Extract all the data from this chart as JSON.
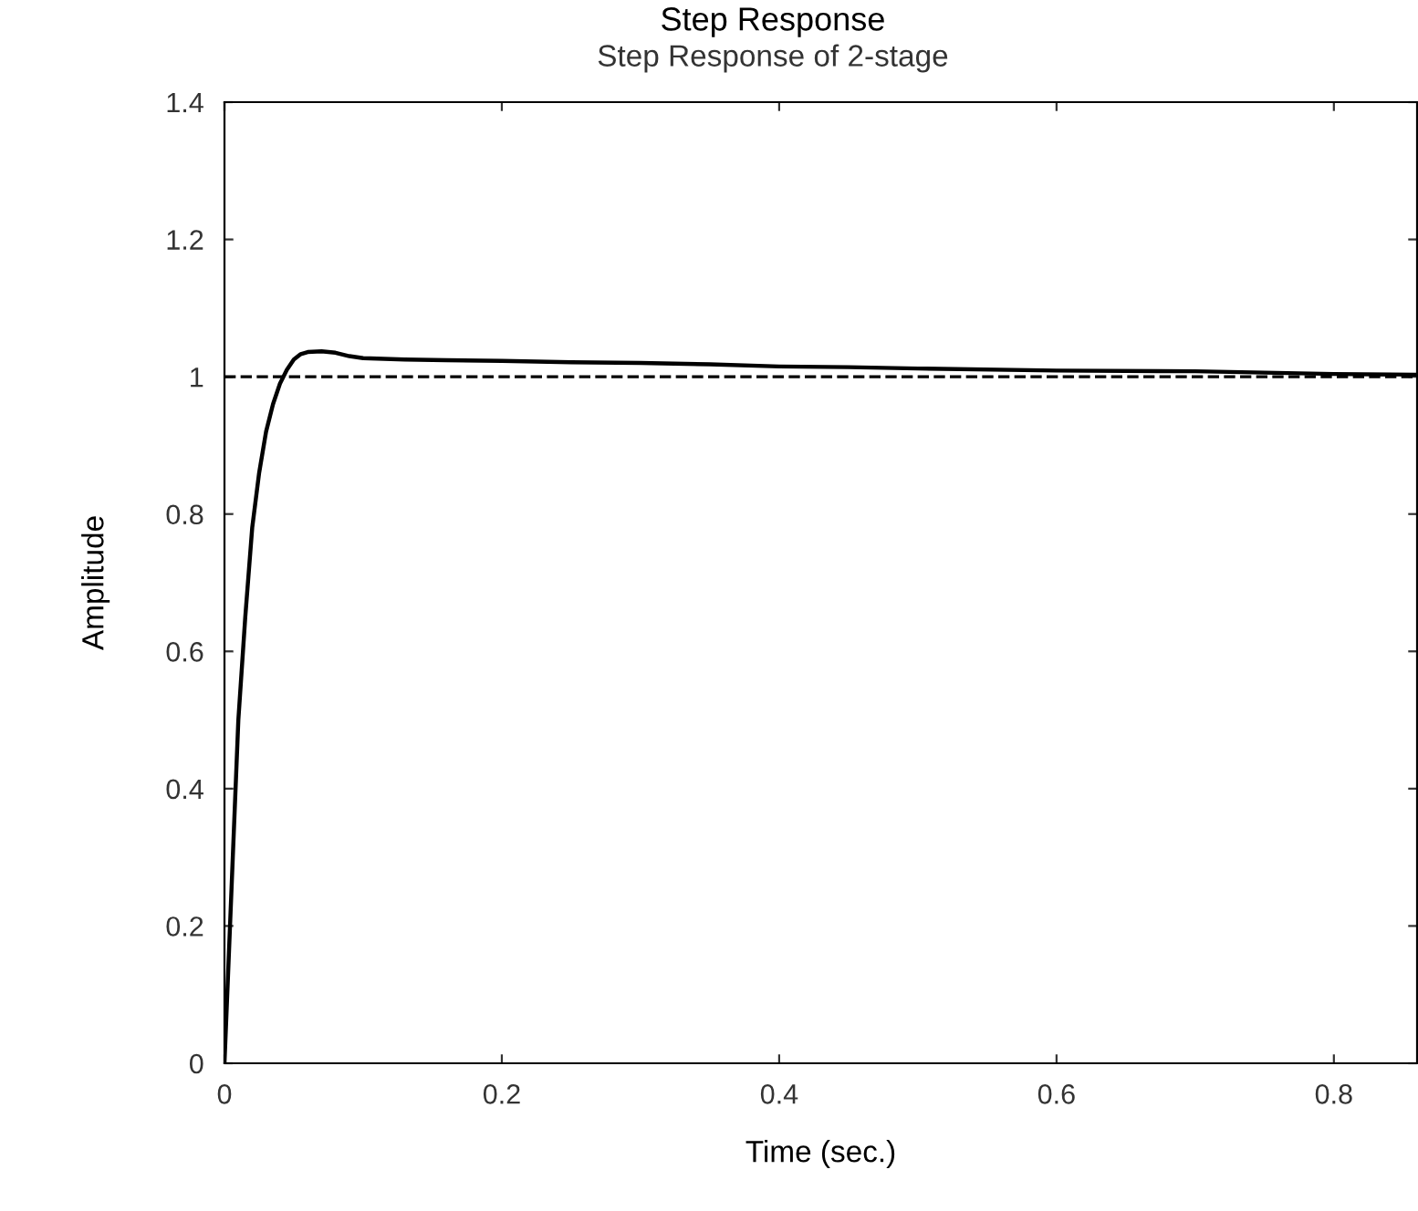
{
  "chart_data": {
    "type": "line",
    "title": "Step Response",
    "subtitle": "Step Response of 2-stage",
    "xlabel": "Time (sec.)",
    "ylabel": "Amplitude",
    "series": [
      {
        "color": "#000000",
        "line_style": "solid",
        "x": [
          0,
          0.003,
          0.006,
          0.01,
          0.015,
          0.02,
          0.025,
          0.03,
          0.035,
          0.04,
          0.045,
          0.05,
          0.055,
          0.06,
          0.07,
          0.08,
          0.09,
          0.1,
          0.13,
          0.16,
          0.2,
          0.25,
          0.3,
          0.35,
          0.4,
          0.45,
          0.5,
          0.6,
          0.7,
          0.75,
          0.8,
          0.86
        ],
        "values": [
          0,
          0.15,
          0.3,
          0.5,
          0.65,
          0.78,
          0.86,
          0.92,
          0.96,
          0.99,
          1.01,
          1.025,
          1.033,
          1.036,
          1.037,
          1.035,
          1.03,
          1.027,
          1.025,
          1.024,
          1.023,
          1.021,
          1.02,
          1.018,
          1.015,
          1.014,
          1.012,
          1.009,
          1.008,
          1.006,
          1.004,
          1.003
        ]
      }
    ],
    "ref_lines": [
      {
        "axis": "y",
        "value": 1,
        "color": "#000000",
        "line_style": "dashed"
      }
    ],
    "xlim": [
      0,
      0.86
    ],
    "ylim": [
      0,
      1.4
    ],
    "xticks": [
      0,
      0.2,
      0.4,
      0.6,
      0.8
    ],
    "yticks": [
      0,
      0.2,
      0.4,
      0.6,
      0.8,
      1,
      1.2,
      1.4
    ],
    "grid": false,
    "legend": false
  }
}
